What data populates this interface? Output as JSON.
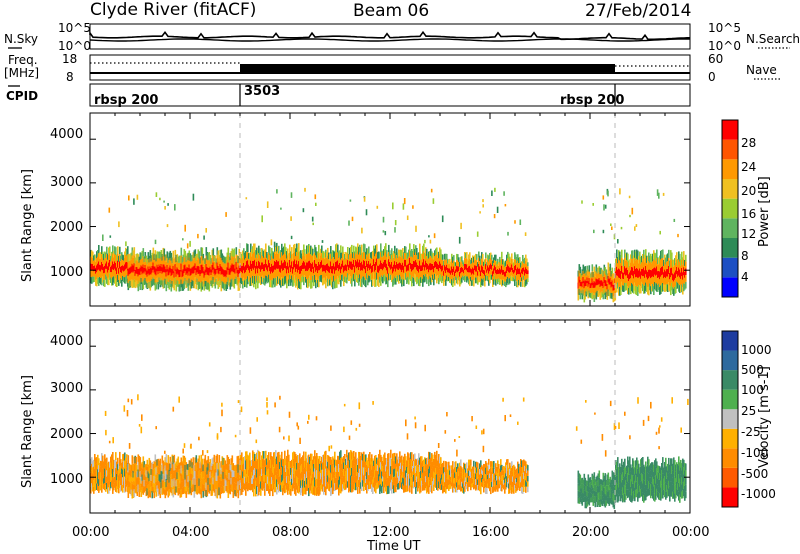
{
  "header": {
    "station": "Clyde River (fitACF)",
    "beam": "Beam 06",
    "date": "27/Feb/2014"
  },
  "side_labels": {
    "nsky": "N.Sky",
    "freq": "Freq.",
    "mhz": "[MHz]",
    "cpid": "CPID",
    "nsearch": "N.Search",
    "nave": "Nave",
    "nsky_top": "10^5",
    "nsky_bottom": "10^0",
    "nsearch_top": "10^5",
    "nsearch_bottom": "10^0",
    "freq_top": "18",
    "freq_bottom": "8",
    "nave_top": "60",
    "nave_bottom": "0"
  },
  "cpid_segments": [
    {
      "label": "rbsp 200",
      "start_hour": 0.0
    },
    {
      "label": "3503",
      "start_hour": 6.0
    },
    {
      "label": "rbsp 200",
      "start_hour": 21.0
    }
  ],
  "colors": {
    "noise_line": "#000000",
    "divider_line": "#bbbbbb",
    "ground_scatter": "#b4b4b4"
  },
  "chart_data": [
    {
      "type": "heatmap",
      "panel": "power",
      "xlabel": "",
      "ylabel": "Slant Range [km]",
      "xlim": [
        0,
        24
      ],
      "ylim": [
        180,
        4600
      ],
      "y_ticks": [
        1000,
        2000,
        3000,
        4000
      ],
      "colorbar_label": "Power [dB]",
      "colorbar_ticks": [
        "28",
        "24",
        "20",
        "16",
        "12",
        "8",
        "4"
      ],
      "colorbar_colors": [
        "#0000ff",
        "#1c4fc3",
        "#2e8b57",
        "#5fb45f",
        "#9acd32",
        "#f0c020",
        "#ff9900",
        "#ff5500",
        "#ff0000"
      ],
      "echo_bands": [
        {
          "hour_start": 0.0,
          "hour_end": 1.5,
          "range_low": 700,
          "range_high": 1450
        },
        {
          "hour_start": 1.5,
          "hour_end": 6.0,
          "range_low": 600,
          "range_high": 1400
        },
        {
          "hour_start": 6.0,
          "hour_end": 10.0,
          "range_low": 650,
          "range_high": 1500
        },
        {
          "hour_start": 10.0,
          "hour_end": 14.0,
          "range_low": 700,
          "range_high": 1500
        },
        {
          "hour_start": 14.0,
          "hour_end": 17.5,
          "range_low": 700,
          "range_high": 1300
        },
        {
          "hour_start": 19.5,
          "hour_end": 21.0,
          "range_low": 350,
          "range_high": 1050
        },
        {
          "hour_start": 21.0,
          "hour_end": 23.8,
          "range_low": 500,
          "range_high": 1350
        }
      ]
    },
    {
      "type": "heatmap",
      "panel": "velocity",
      "xlabel": "Time UT",
      "ylabel": "Slant Range [km]",
      "xlim": [
        0,
        24
      ],
      "ylim": [
        180,
        4600
      ],
      "x_ticks": [
        "00:00",
        "04:00",
        "08:00",
        "12:00",
        "16:00",
        "20:00",
        "00:00"
      ],
      "y_ticks": [
        1000,
        2000,
        3000,
        4000
      ],
      "colorbar_label": "Velocity [m s-1]",
      "colorbar_ticks": [
        "1000",
        "500",
        "100",
        "25",
        "-25",
        "-100",
        "-500",
        "-1000"
      ],
      "colorbar_colors": [
        "#1e3ca0",
        "#2e6a9e",
        "#3a8a66",
        "#4fb04f",
        "#c0c0c0",
        "#ffb000",
        "#ff8c00",
        "#ff5a00",
        "#ff0000"
      ],
      "echo_bands": [
        {
          "hour_start": 0.0,
          "hour_end": 1.5,
          "range_low": 700,
          "range_high": 1450
        },
        {
          "hour_start": 1.5,
          "hour_end": 6.0,
          "range_low": 600,
          "range_high": 1400
        },
        {
          "hour_start": 6.0,
          "hour_end": 10.0,
          "range_low": 650,
          "range_high": 1500
        },
        {
          "hour_start": 10.0,
          "hour_end": 14.0,
          "range_low": 700,
          "range_high": 1500
        },
        {
          "hour_start": 14.0,
          "hour_end": 17.5,
          "range_low": 700,
          "range_high": 1300
        },
        {
          "hour_start": 19.5,
          "hour_end": 21.0,
          "range_low": 350,
          "range_high": 1050
        },
        {
          "hour_start": 21.0,
          "hour_end": 23.8,
          "range_low": 500,
          "range_high": 1350
        }
      ]
    }
  ]
}
